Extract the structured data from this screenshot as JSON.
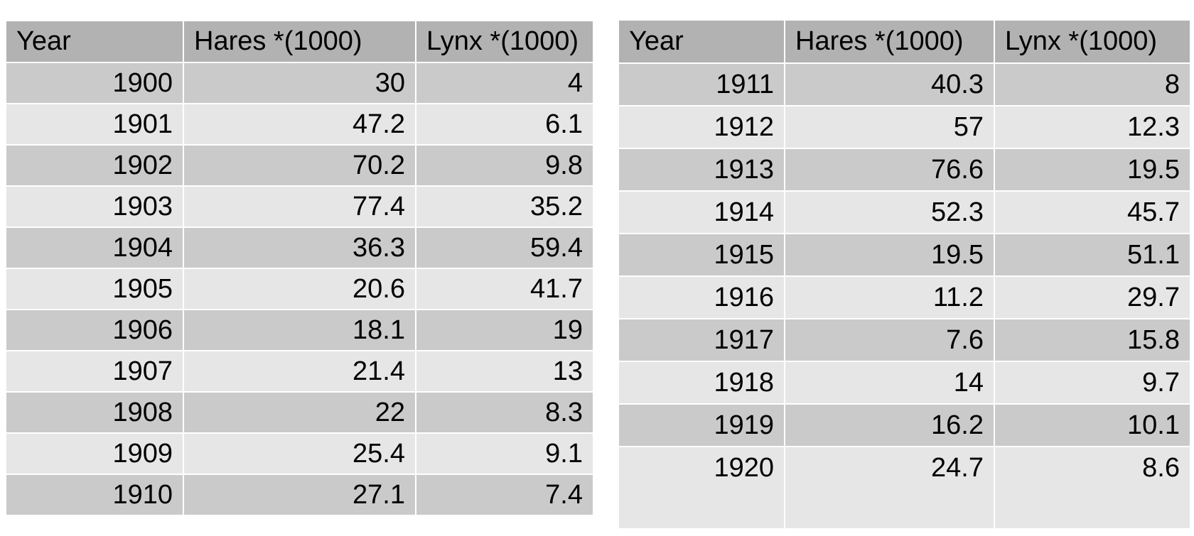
{
  "left_table": {
    "headers": [
      "Year",
      "Hares *(1000)",
      "Lynx *(1000)"
    ],
    "rows": [
      [
        "1900",
        "30",
        "4"
      ],
      [
        "1901",
        "47.2",
        "6.1"
      ],
      [
        "1902",
        "70.2",
        "9.8"
      ],
      [
        "1903",
        "77.4",
        "35.2"
      ],
      [
        "1904",
        "36.3",
        "59.4"
      ],
      [
        "1905",
        "20.6",
        "41.7"
      ],
      [
        "1906",
        "18.1",
        "19"
      ],
      [
        "1907",
        "21.4",
        "13"
      ],
      [
        "1908",
        "22",
        "8.3"
      ],
      [
        "1909",
        "25.4",
        "9.1"
      ],
      [
        "1910",
        "27.1",
        "7.4"
      ]
    ]
  },
  "right_table": {
    "headers": [
      "Year",
      "Hares *(1000)",
      "Lynx *(1000)"
    ],
    "rows": [
      [
        "1911",
        "40.3",
        "8"
      ],
      [
        "1912",
        "57",
        "12.3"
      ],
      [
        "1913",
        "76.6",
        "19.5"
      ],
      [
        "1914",
        "52.3",
        "45.7"
      ],
      [
        "1915",
        "19.5",
        "51.1"
      ],
      [
        "1916",
        "11.2",
        "29.7"
      ],
      [
        "1917",
        "7.6",
        "15.8"
      ],
      [
        "1918",
        "14",
        "9.7"
      ],
      [
        "1919",
        "16.2",
        "10.1"
      ],
      [
        "1920",
        "24.7",
        "8.6"
      ]
    ]
  },
  "colors": {
    "header_bg": "#b2b2b2",
    "row_dark": "#cacaca",
    "row_light": "#e6e6e6"
  }
}
